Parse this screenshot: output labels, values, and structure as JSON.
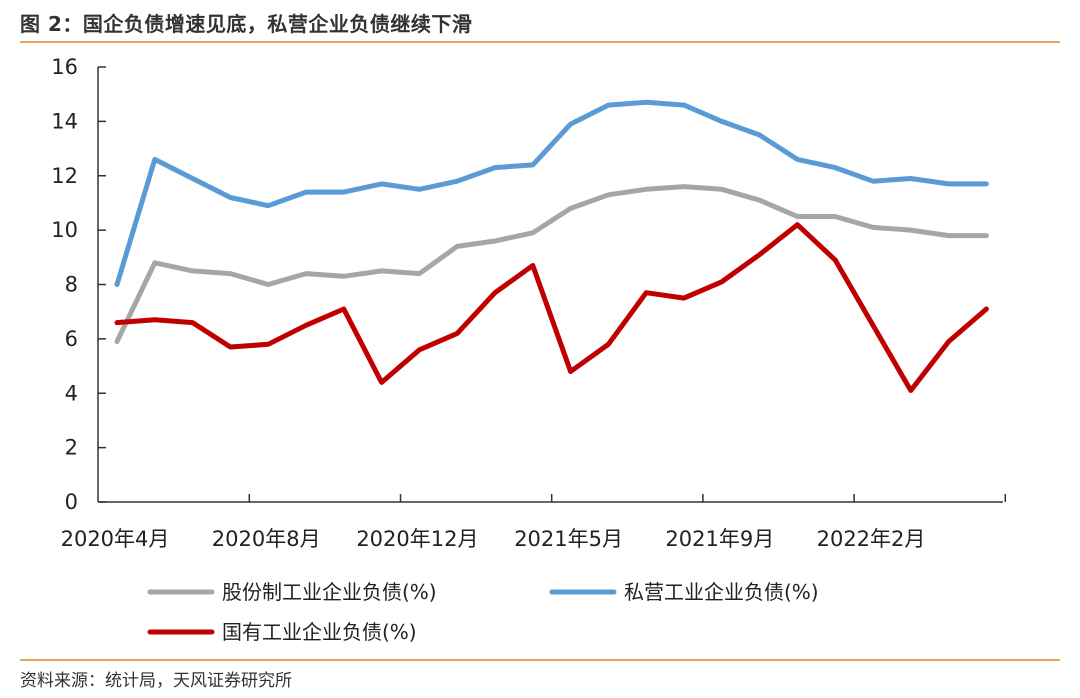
{
  "header": {
    "title": "图 2：国企负债增速见底，私营企业负债继续下滑"
  },
  "footer": {
    "source": "资料来源：统计局，天风证券研究所"
  },
  "colors": {
    "rule": "#e8a25c",
    "series": [
      "#a6a6a6",
      "#5b9bd5",
      "#c00000"
    ]
  },
  "chart_data": {
    "type": "line",
    "title": "图 2：国企负债增速见底，私营企业负债继续下滑",
    "xlabel": "",
    "ylabel": "",
    "ylim": [
      0,
      16
    ],
    "yticks": [
      0,
      2,
      4,
      6,
      8,
      10,
      12,
      14,
      16
    ],
    "x": [
      "2020年4月",
      "2020年5月",
      "2020年6月",
      "2020年7月",
      "2020年8月",
      "2020年9月",
      "2020年10月",
      "2020年11月",
      "2020年12月",
      "2021年2月",
      "2021年3月",
      "2021年4月",
      "2021年5月",
      "2021年6月",
      "2021年7月",
      "2021年8月",
      "2021年9月",
      "2021年10月",
      "2021年11月",
      "2021年12月",
      "2022年2月",
      "2022年3月",
      "2022年4月",
      "2022年5月"
    ],
    "xtick_labels": [
      "2020年4月",
      "2020年8月",
      "2020年12月",
      "2021年5月",
      "2021年9月",
      "2022年2月"
    ],
    "xtick_index": [
      0,
      4,
      8,
      12,
      16,
      20
    ],
    "grid": false,
    "legend_position": "bottom",
    "series": [
      {
        "name": "股份制工业企业负债(%)",
        "values": [
          5.9,
          8.8,
          8.5,
          8.4,
          8.0,
          8.4,
          8.3,
          8.5,
          8.4,
          9.4,
          9.6,
          9.9,
          10.8,
          11.3,
          11.5,
          11.6,
          11.5,
          11.1,
          10.5,
          10.5,
          10.1,
          10.0,
          9.8,
          9.8
        ]
      },
      {
        "name": "私营工业企业负债(%)",
        "values": [
          8.0,
          12.6,
          11.9,
          11.2,
          10.9,
          11.4,
          11.4,
          11.7,
          11.5,
          11.8,
          12.3,
          12.4,
          13.9,
          14.6,
          14.7,
          14.6,
          14.0,
          13.5,
          12.6,
          12.3,
          11.8,
          11.9,
          11.7,
          11.7
        ]
      },
      {
        "name": "国有工业企业负债(%)",
        "values": [
          6.6,
          6.7,
          6.6,
          5.7,
          5.8,
          6.5,
          7.1,
          4.4,
          5.6,
          6.2,
          7.7,
          8.7,
          4.8,
          5.8,
          7.7,
          7.5,
          8.1,
          9.1,
          10.2,
          8.9,
          6.5,
          4.1,
          5.9,
          7.1
        ]
      }
    ]
  }
}
